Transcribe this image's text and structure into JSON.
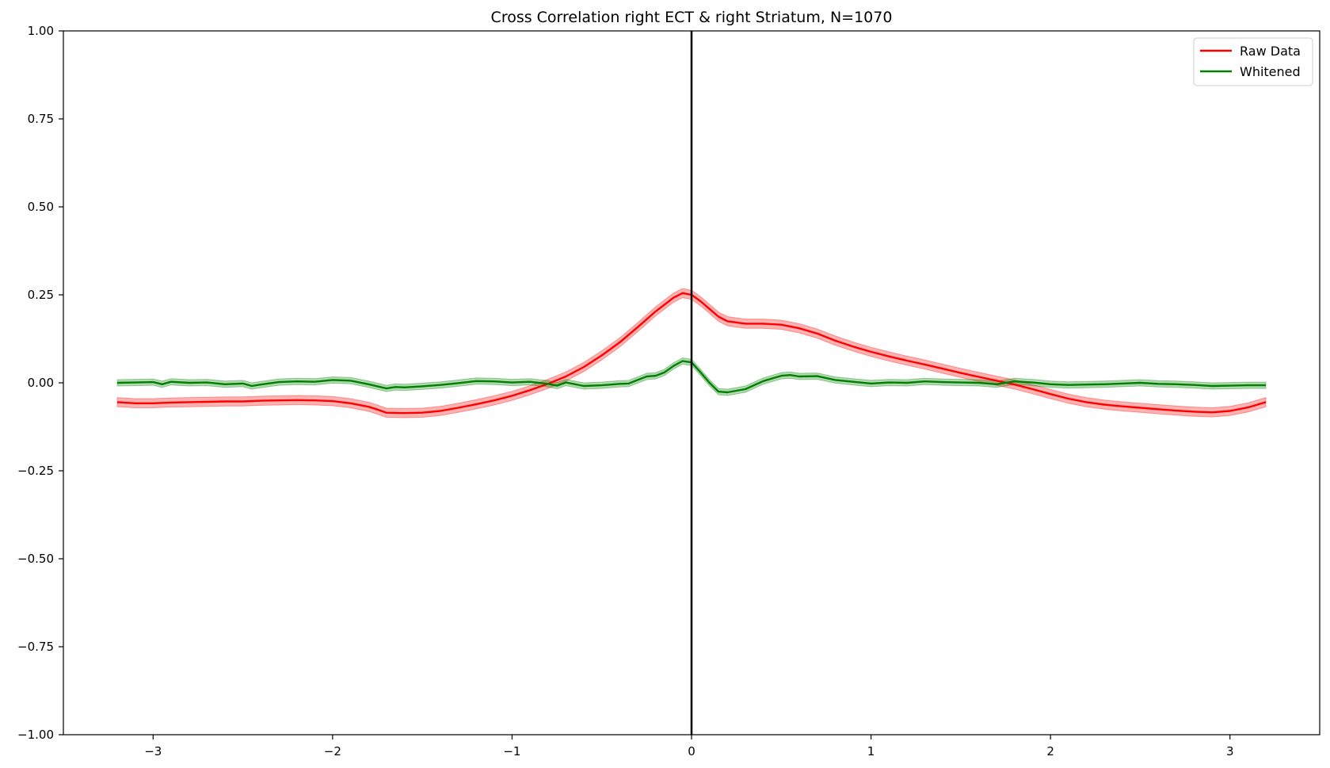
{
  "chart_data": {
    "type": "line",
    "title": "Cross Correlation right ECT & right Striatum, N=1070",
    "xlabel": "",
    "ylabel": "",
    "xlim": [
      -3.5,
      3.5
    ],
    "ylim": [
      -1.0,
      1.0
    ],
    "x_ticks": [
      -3,
      -2,
      -1,
      0,
      1,
      2,
      3
    ],
    "x_tick_labels": [
      "−3",
      "−2",
      "−1",
      "0",
      "1",
      "2",
      "3"
    ],
    "y_ticks": [
      1.0,
      0.75,
      0.5,
      0.25,
      0.0,
      -0.25,
      -0.5,
      -0.75,
      -1.0
    ],
    "y_tick_labels": [
      "1.00",
      "0.75",
      "0.50",
      "0.25",
      "0.00",
      "−0.25",
      "−0.50",
      "−0.75",
      "−1.00"
    ],
    "grid": false,
    "legend_position": "top-right",
    "vline_x": 0,
    "series": [
      {
        "name": "Raw Data",
        "color": "#ff0000",
        "band_color": "#ff0000",
        "band_halfwidth": 0.013,
        "points": [
          [
            -3.2,
            -0.055
          ],
          [
            -3.1,
            -0.058
          ],
          [
            -3.0,
            -0.058
          ],
          [
            -2.9,
            -0.056
          ],
          [
            -2.8,
            -0.055
          ],
          [
            -2.7,
            -0.054
          ],
          [
            -2.6,
            -0.053
          ],
          [
            -2.5,
            -0.053
          ],
          [
            -2.4,
            -0.051
          ],
          [
            -2.3,
            -0.05
          ],
          [
            -2.2,
            -0.049
          ],
          [
            -2.1,
            -0.05
          ],
          [
            -2.0,
            -0.052
          ],
          [
            -1.9,
            -0.058
          ],
          [
            -1.8,
            -0.068
          ],
          [
            -1.75,
            -0.076
          ],
          [
            -1.7,
            -0.085
          ],
          [
            -1.6,
            -0.086
          ],
          [
            -1.5,
            -0.085
          ],
          [
            -1.4,
            -0.08
          ],
          [
            -1.3,
            -0.071
          ],
          [
            -1.2,
            -0.061
          ],
          [
            -1.1,
            -0.05
          ],
          [
            -1.0,
            -0.037
          ],
          [
            -0.9,
            -0.021
          ],
          [
            -0.8,
            -0.003
          ],
          [
            -0.7,
            0.018
          ],
          [
            -0.6,
            0.045
          ],
          [
            -0.5,
            0.078
          ],
          [
            -0.4,
            0.115
          ],
          [
            -0.3,
            0.158
          ],
          [
            -0.2,
            0.203
          ],
          [
            -0.1,
            0.242
          ],
          [
            -0.05,
            0.255
          ],
          [
            0.0,
            0.25
          ],
          [
            0.05,
            0.232
          ],
          [
            0.1,
            0.21
          ],
          [
            0.15,
            0.188
          ],
          [
            0.2,
            0.175
          ],
          [
            0.3,
            0.168
          ],
          [
            0.4,
            0.168
          ],
          [
            0.5,
            0.165
          ],
          [
            0.6,
            0.155
          ],
          [
            0.7,
            0.14
          ],
          [
            0.8,
            0.12
          ],
          [
            0.9,
            0.103
          ],
          [
            1.0,
            0.088
          ],
          [
            1.1,
            0.075
          ],
          [
            1.2,
            0.063
          ],
          [
            1.3,
            0.052
          ],
          [
            1.4,
            0.04
          ],
          [
            1.5,
            0.028
          ],
          [
            1.6,
            0.017
          ],
          [
            1.7,
            0.006
          ],
          [
            1.8,
            -0.005
          ],
          [
            1.9,
            -0.018
          ],
          [
            2.0,
            -0.032
          ],
          [
            2.1,
            -0.045
          ],
          [
            2.2,
            -0.055
          ],
          [
            2.3,
            -0.062
          ],
          [
            2.4,
            -0.067
          ],
          [
            2.5,
            -0.071
          ],
          [
            2.6,
            -0.075
          ],
          [
            2.7,
            -0.079
          ],
          [
            2.8,
            -0.082
          ],
          [
            2.9,
            -0.084
          ],
          [
            3.0,
            -0.08
          ],
          [
            3.1,
            -0.07
          ],
          [
            3.2,
            -0.055
          ]
        ]
      },
      {
        "name": "Whitened",
        "color": "#008000",
        "band_color": "#008000",
        "band_halfwidth": 0.009,
        "points": [
          [
            -3.2,
            0.0
          ],
          [
            -3.1,
            0.001
          ],
          [
            -3.0,
            0.002
          ],
          [
            -2.95,
            -0.004
          ],
          [
            -2.9,
            0.003
          ],
          [
            -2.8,
            0.0
          ],
          [
            -2.7,
            0.001
          ],
          [
            -2.6,
            -0.004
          ],
          [
            -2.5,
            -0.002
          ],
          [
            -2.45,
            -0.009
          ],
          [
            -2.4,
            -0.005
          ],
          [
            -2.3,
            0.002
          ],
          [
            -2.2,
            0.004
          ],
          [
            -2.1,
            0.003
          ],
          [
            -2.0,
            0.008
          ],
          [
            -1.9,
            0.006
          ],
          [
            -1.8,
            -0.004
          ],
          [
            -1.7,
            -0.016
          ],
          [
            -1.65,
            -0.012
          ],
          [
            -1.6,
            -0.013
          ],
          [
            -1.5,
            -0.01
          ],
          [
            -1.4,
            -0.006
          ],
          [
            -1.3,
            -0.001
          ],
          [
            -1.2,
            0.005
          ],
          [
            -1.1,
            0.004
          ],
          [
            -1.0,
            0.001
          ],
          [
            -0.9,
            0.003
          ],
          [
            -0.8,
            -0.003
          ],
          [
            -0.75,
            -0.008
          ],
          [
            -0.7,
            0.001
          ],
          [
            -0.6,
            -0.009
          ],
          [
            -0.5,
            -0.007
          ],
          [
            -0.4,
            -0.003
          ],
          [
            -0.35,
            -0.002
          ],
          [
            -0.3,
            0.008
          ],
          [
            -0.25,
            0.018
          ],
          [
            -0.2,
            0.02
          ],
          [
            -0.15,
            0.03
          ],
          [
            -0.1,
            0.048
          ],
          [
            -0.05,
            0.062
          ],
          [
            0.0,
            0.058
          ],
          [
            0.05,
            0.03
          ],
          [
            0.1,
            0.0
          ],
          [
            0.15,
            -0.025
          ],
          [
            0.2,
            -0.027
          ],
          [
            0.3,
            -0.018
          ],
          [
            0.4,
            0.005
          ],
          [
            0.5,
            0.02
          ],
          [
            0.55,
            0.022
          ],
          [
            0.6,
            0.018
          ],
          [
            0.7,
            0.019
          ],
          [
            0.8,
            0.008
          ],
          [
            0.9,
            0.003
          ],
          [
            1.0,
            -0.002
          ],
          [
            1.1,
            0.001
          ],
          [
            1.2,
            0.0
          ],
          [
            1.3,
            0.004
          ],
          [
            1.4,
            0.002
          ],
          [
            1.5,
            0.001
          ],
          [
            1.6,
            0.0
          ],
          [
            1.7,
            -0.004
          ],
          [
            1.8,
            0.004
          ],
          [
            1.9,
            0.001
          ],
          [
            2.0,
            -0.004
          ],
          [
            2.1,
            -0.006
          ],
          [
            2.2,
            -0.005
          ],
          [
            2.3,
            -0.004
          ],
          [
            2.4,
            -0.002
          ],
          [
            2.5,
            0.0
          ],
          [
            2.6,
            -0.003
          ],
          [
            2.7,
            -0.004
          ],
          [
            2.8,
            -0.006
          ],
          [
            2.9,
            -0.009
          ],
          [
            3.0,
            -0.008
          ],
          [
            3.1,
            -0.007
          ],
          [
            3.2,
            -0.007
          ]
        ]
      }
    ]
  }
}
